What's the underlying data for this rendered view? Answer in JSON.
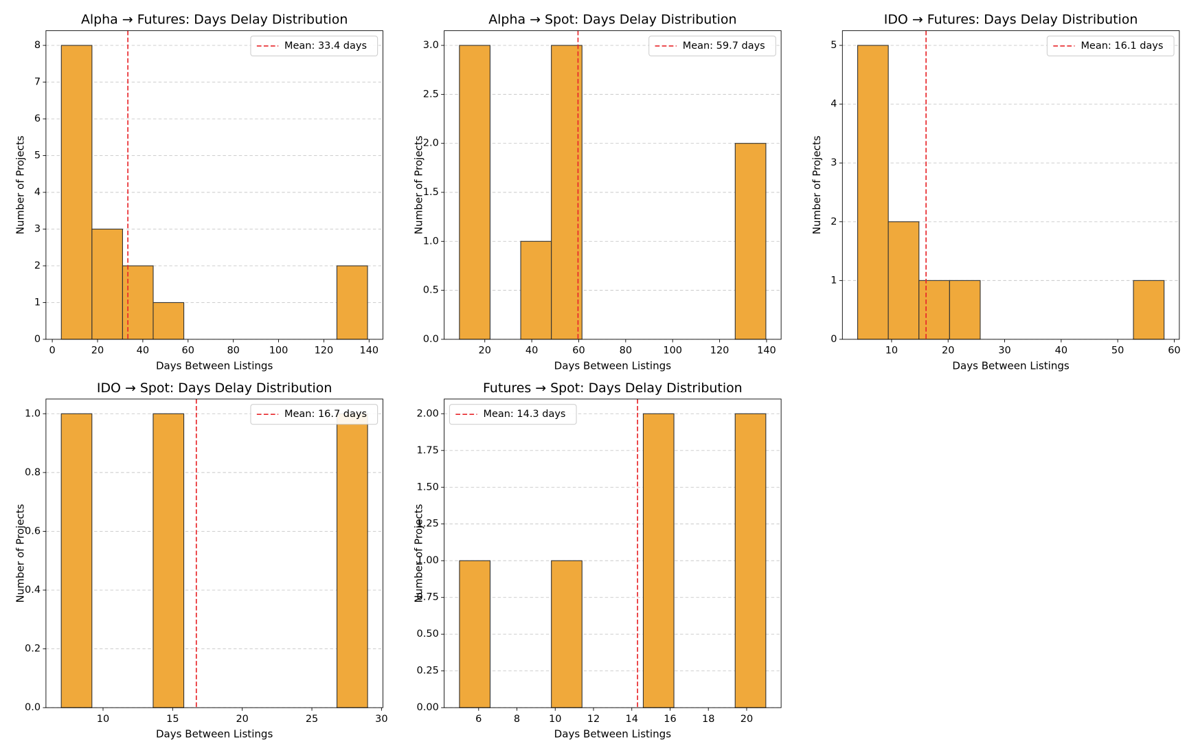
{
  "chart_data": [
    {
      "type": "histogram",
      "title": "Alpha → Futures: Days Delay Distribution",
      "xlabel": "Days Between Listings",
      "ylabel": "Number of Projects",
      "bins": [
        4,
        17.53,
        31.06,
        44.59,
        58.12,
        71.65,
        85.18,
        98.71,
        112.24,
        125.77,
        139.3
      ],
      "counts": [
        8,
        3,
        2,
        1,
        0,
        0,
        0,
        0,
        0,
        2
      ],
      "color": "#f0a93b",
      "edgecolor": "#333333",
      "xlim": [
        -2.8,
        146.1
      ],
      "ylim": [
        0,
        8.4
      ],
      "xticks": [
        0,
        20,
        40,
        60,
        80,
        100,
        120,
        140
      ],
      "yticks": [
        0,
        1,
        2,
        3,
        4,
        5,
        6,
        7,
        8
      ],
      "mean": 33.4,
      "mean_label": "Mean: 33.4 days",
      "mean_color": "#e8262a",
      "legend": "upper right",
      "grid": true
    },
    {
      "type": "histogram",
      "title": "Alpha → Spot: Days Delay Distribution",
      "xlabel": "Days Between Listings",
      "ylabel": "Number of Projects",
      "bins": [
        9.2,
        22.25,
        35.3,
        48.35,
        61.4,
        74.45,
        87.5,
        100.55,
        113.6,
        126.65,
        139.7
      ],
      "counts": [
        3,
        0,
        1,
        3,
        0,
        0,
        0,
        0,
        0,
        2
      ],
      "color": "#f0a93b",
      "edgecolor": "#333333",
      "xlim": [
        2.7,
        146.2
      ],
      "ylim": [
        0,
        3.15
      ],
      "xticks": [
        20,
        40,
        60,
        80,
        100,
        120,
        140
      ],
      "yticks": [
        {
          "value": 0,
          "label": "0.0"
        },
        0.5,
        {
          "value": 1,
          "label": "1.0"
        },
        1.5,
        {
          "value": 2,
          "label": "2.0"
        },
        2.5,
        {
          "value": 3,
          "label": "3.0"
        }
      ],
      "mean": 59.7,
      "mean_label": "Mean: 59.7 days",
      "mean_color": "#e8262a",
      "legend": "upper right",
      "grid": true
    },
    {
      "type": "histogram",
      "title": "IDO → Futures: Days Delay Distribution",
      "xlabel": "Days Between Listings",
      "ylabel": "Number of Projects",
      "bins": [
        4,
        9.42,
        14.84,
        20.26,
        25.68,
        31.1,
        36.52,
        41.94,
        47.36,
        52.78,
        58.2
      ],
      "counts": [
        5,
        2,
        1,
        1,
        0,
        0,
        0,
        0,
        0,
        1
      ],
      "color": "#f0a93b",
      "edgecolor": "#333333",
      "xlim": [
        1.3,
        60.9
      ],
      "ylim": [
        0,
        5.25
      ],
      "xticks": [
        10,
        20,
        30,
        40,
        50,
        60
      ],
      "yticks": [
        0,
        1,
        2,
        3,
        4,
        5
      ],
      "mean": 16.1,
      "mean_label": "Mean: 16.1 days",
      "mean_color": "#e8262a",
      "legend": "upper right",
      "grid": true
    },
    {
      "type": "histogram",
      "title": "IDO → Spot: Days Delay Distribution",
      "xlabel": "Days Between Listings",
      "ylabel": "Number of Projects",
      "bins": [
        7,
        9.2,
        11.4,
        13.6,
        15.8,
        18,
        20.2,
        22.4,
        24.6,
        26.8,
        29
      ],
      "counts": [
        1,
        0,
        0,
        1,
        0,
        0,
        0,
        0,
        0,
        1
      ],
      "color": "#f0a93b",
      "edgecolor": "#333333",
      "xlim": [
        5.9,
        30.1
      ],
      "ylim": [
        0,
        1.05
      ],
      "xticks": [
        10,
        15,
        20,
        25,
        30
      ],
      "yticks": [
        {
          "value": 0,
          "label": "0.0"
        },
        0.2,
        0.4,
        0.6,
        0.8,
        {
          "value": 1,
          "label": "1.0"
        }
      ],
      "mean": 16.7,
      "mean_label": "Mean: 16.7 days",
      "mean_color": "#e8262a",
      "legend": "upper right",
      "grid": true
    },
    {
      "type": "histogram",
      "title": "Futures → Spot: Days Delay Distribution",
      "xlabel": "Days Between Listings",
      "ylabel": "Number of Projects",
      "bins": [
        5,
        6.6,
        8.2,
        9.8,
        11.4,
        13,
        14.6,
        16.2,
        17.8,
        19.4,
        21
      ],
      "counts": [
        1,
        0,
        0,
        1,
        0,
        0,
        2,
        0,
        0,
        2
      ],
      "color": "#f0a93b",
      "edgecolor": "#333333",
      "xlim": [
        4.2,
        21.8
      ],
      "ylim": [
        0,
        2.1
      ],
      "xticks": [
        6,
        8,
        10,
        12,
        14,
        16,
        18,
        20
      ],
      "yticks": [
        {
          "value": 0,
          "label": "0.00"
        },
        0.25,
        {
          "value": 0.5,
          "label": "0.50"
        },
        0.75,
        {
          "value": 1,
          "label": "1.00"
        },
        1.25,
        {
          "value": 1.5,
          "label": "1.50"
        },
        1.75,
        {
          "value": 2,
          "label": "2.00"
        }
      ],
      "mean": 14.3,
      "mean_label": "Mean: 14.3 days",
      "mean_color": "#e8262a",
      "legend": "upper left",
      "grid": true
    }
  ]
}
